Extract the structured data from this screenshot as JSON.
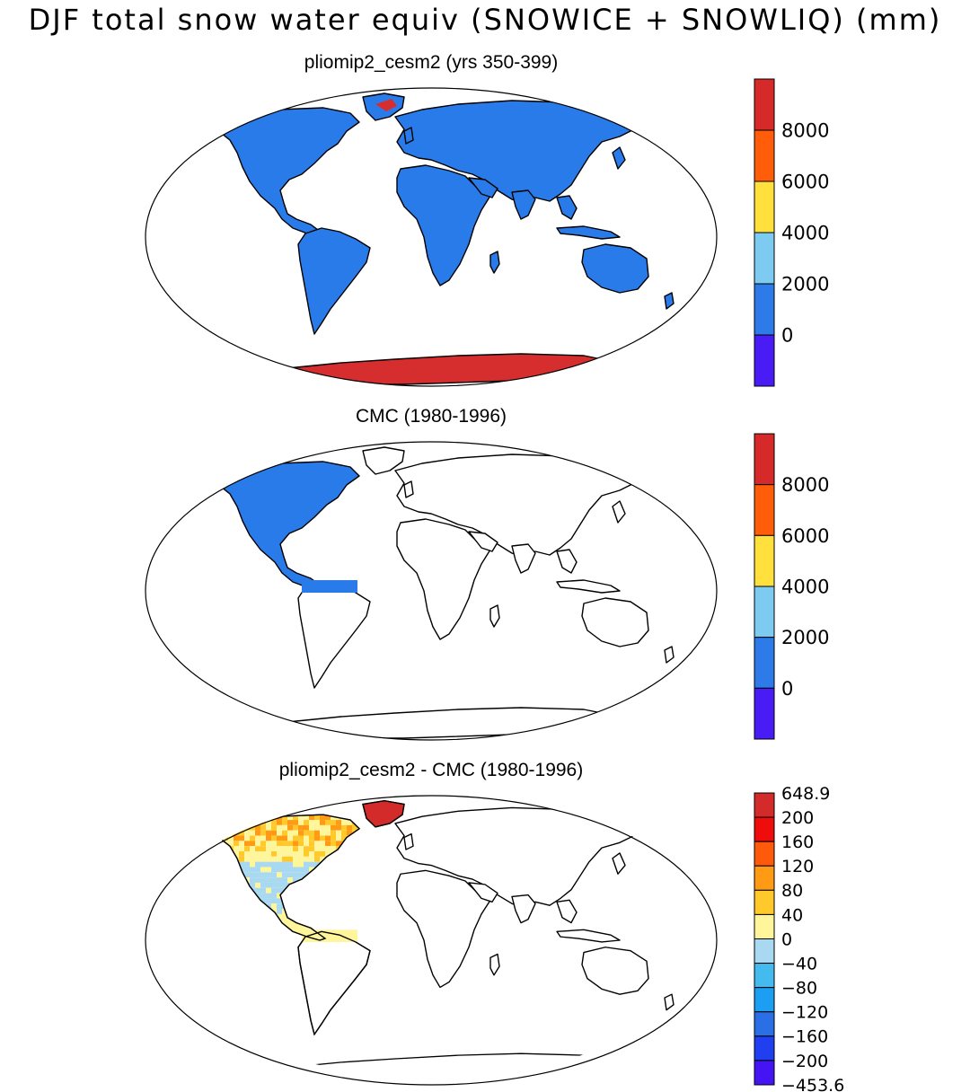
{
  "figure": {
    "title": "DJF total snow water equiv (SNOWICE + SNOWLIQ) (mm)"
  },
  "colors": {
    "ocean": "#ffffff",
    "coastline": "#000000",
    "land_fill": "#2a7bea",
    "ice_fill": "#d62e2e"
  },
  "panels": [
    {
      "id": "model",
      "title": "pliomip2_cesm2 (yrs 350-399)",
      "data_coverage": "global land",
      "colorbar": {
        "labels": [
          "8000",
          "6000",
          "4000",
          "2000",
          "0"
        ],
        "colors": [
          "#d62a2a",
          "#ff5d0a",
          "#ffe03d",
          "#7dcbf0",
          "#2d7be8",
          "#4a1cf5"
        ]
      }
    },
    {
      "id": "obs",
      "title": "CMC (1980-1996)",
      "data_coverage": "North America",
      "colorbar": {
        "labels": [
          "8000",
          "6000",
          "4000",
          "2000",
          "0"
        ],
        "colors": [
          "#d62a2a",
          "#ff5d0a",
          "#ffe03d",
          "#7dcbf0",
          "#2d7be8",
          "#4a1cf5"
        ]
      }
    },
    {
      "id": "diff",
      "title": "pliomip2_cesm2 - CMC (1980-1996)",
      "data_coverage": "North America",
      "colorbar": {
        "labels": [
          "648.9",
          "200",
          "160",
          "120",
          "80",
          "40",
          "0",
          "−40",
          "−80",
          "−120",
          "−160",
          "−200",
          "−453.6"
        ],
        "colors": [
          "#d32a2a",
          "#ee0c0c",
          "#ff5a0c",
          "#ff9a14",
          "#ffc92c",
          "#fff59a",
          "#a9d9f0",
          "#44bbef",
          "#1c9ef2",
          "#2b6fe6",
          "#1f3ff0",
          "#4414f4"
        ]
      }
    }
  ]
}
